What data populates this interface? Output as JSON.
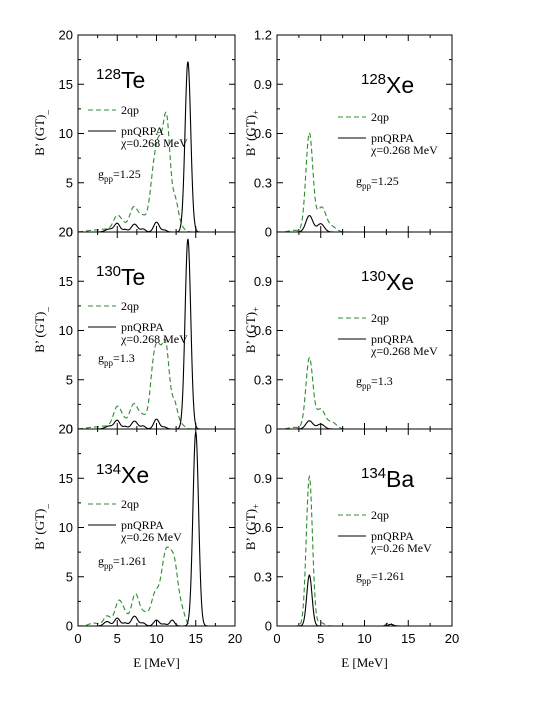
{
  "chart_data": [
    {
      "type": "line",
      "nucleus": {
        "mass": "128",
        "symbol": "Te"
      },
      "ylabel": {
        "main": "B’ (GT)",
        "sub": "_"
      },
      "xlim": [
        0,
        20
      ],
      "ylim": [
        0,
        20
      ],
      "yticks": [
        0,
        5,
        10,
        15,
        20
      ],
      "ytick_labels": [
        "0",
        "5",
        "10",
        "15",
        "20"
      ],
      "xticks": [
        0,
        5,
        10,
        15,
        20
      ],
      "xtick_labels": [],
      "legend": [
        {
          "label": "2qp",
          "label2": "",
          "style": "dashed",
          "color": "#2e8b2e"
        },
        {
          "label": "pnQRPA",
          "label2": "χ=0.268 MeV",
          "style": "solid",
          "color": "#000000"
        }
      ],
      "annotation": {
        "g": "g",
        "sub": "pp",
        "value": "=1.25"
      },
      "series": [
        {
          "color": "#2e8b2e",
          "dashed": true,
          "peaks": [
            [
              1.2,
              0.05,
              0.8
            ],
            [
              2.2,
              0.15,
              0.8
            ],
            [
              3.6,
              0.25,
              0.7
            ],
            [
              5.0,
              1.6,
              0.5
            ],
            [
              5.8,
              0.5,
              0.4
            ],
            [
              7.1,
              2.5,
              0.55
            ],
            [
              8.3,
              1.4,
              0.5
            ],
            [
              9.5,
              4.0,
              0.45
            ],
            [
              10.3,
              8.0,
              0.5
            ],
            [
              11.3,
              10.8,
              0.45
            ],
            [
              12.4,
              3.0,
              0.4
            ],
            [
              13.2,
              0.4,
              0.4
            ]
          ]
        },
        {
          "color": "#000000",
          "dashed": false,
          "peaks": [
            [
              4.0,
              0.3,
              0.5
            ],
            [
              5.0,
              0.85,
              0.35
            ],
            [
              6.0,
              0.25,
              0.3
            ],
            [
              7.2,
              0.8,
              0.4
            ],
            [
              8.3,
              0.3,
              0.3
            ],
            [
              10.0,
              1.0,
              0.35
            ],
            [
              11.0,
              0.2,
              0.3
            ],
            [
              14.0,
              17.3,
              0.36
            ]
          ]
        }
      ]
    },
    {
      "type": "line",
      "nucleus": {
        "mass": "128",
        "symbol": "Xe"
      },
      "ylabel": {
        "main": "B’ (GT)",
        "sub": "+"
      },
      "xlim": [
        0,
        20
      ],
      "ylim": [
        0,
        1.2
      ],
      "yticks": [
        0,
        0.3,
        0.6,
        0.9,
        1.2
      ],
      "ytick_labels": [
        "0",
        "0.3",
        "0.6",
        "0.9",
        "1.2"
      ],
      "xticks": [
        0,
        5,
        10,
        15,
        20
      ],
      "xtick_labels": [],
      "legend": [
        {
          "label": "2qp",
          "label2": "",
          "style": "dashed",
          "color": "#2e8b2e"
        },
        {
          "label": "pnQRPA",
          "label2": "χ=0.268 MeV",
          "style": "solid",
          "color": "#000000"
        }
      ],
      "annotation": {
        "g": "g",
        "sub": "pp",
        "value": "=1.25"
      },
      "series": [
        {
          "color": "#2e8b2e",
          "dashed": true,
          "peaks": [
            [
              2.0,
              0.01,
              0.6
            ],
            [
              3.7,
              0.6,
              0.4
            ],
            [
              5.1,
              0.15,
              0.5
            ],
            [
              6.3,
              0.03,
              0.5
            ]
          ]
        },
        {
          "color": "#000000",
          "dashed": false,
          "peaks": [
            [
              3.7,
              0.1,
              0.4
            ],
            [
              5.0,
              0.05,
              0.4
            ]
          ]
        }
      ]
    },
    {
      "type": "line",
      "nucleus": {
        "mass": "130",
        "symbol": "Te"
      },
      "ylabel": {
        "main": "B’ (GT)",
        "sub": "_"
      },
      "xlim": [
        0,
        20
      ],
      "ylim": [
        0,
        20
      ],
      "yticks": [
        0,
        5,
        10,
        15,
        20
      ],
      "ytick_labels": [
        "0",
        "5",
        "10",
        "15",
        "20"
      ],
      "xticks": [
        0,
        5,
        10,
        15,
        20
      ],
      "xtick_labels": [],
      "legend": [
        {
          "label": "2qp",
          "label2": "",
          "style": "dashed",
          "color": "#2e8b2e"
        },
        {
          "label": "pnQRPA",
          "label2": "χ=0.268 MeV",
          "style": "solid",
          "color": "#000000"
        }
      ],
      "annotation": {
        "g": "g",
        "sub": "pp",
        "value": "=1.3"
      },
      "series": [
        {
          "color": "#2e8b2e",
          "dashed": true,
          "peaks": [
            [
              1.2,
              0.05,
              0.8
            ],
            [
              2.2,
              0.15,
              0.8
            ],
            [
              3.6,
              0.25,
              0.7
            ],
            [
              5.0,
              2.2,
              0.5
            ],
            [
              5.8,
              0.6,
              0.4
            ],
            [
              7.1,
              2.5,
              0.55
            ],
            [
              8.3,
              1.2,
              0.5
            ],
            [
              9.6,
              5.5,
              0.45
            ],
            [
              10.3,
              6.0,
              0.45
            ],
            [
              11.2,
              8.0,
              0.45
            ],
            [
              12.3,
              2.5,
              0.4
            ],
            [
              13.2,
              0.4,
              0.4
            ]
          ]
        },
        {
          "color": "#000000",
          "dashed": false,
          "peaks": [
            [
              4.0,
              0.3,
              0.5
            ],
            [
              5.0,
              0.85,
              0.35
            ],
            [
              6.0,
              0.25,
              0.3
            ],
            [
              7.2,
              0.8,
              0.4
            ],
            [
              8.3,
              0.3,
              0.3
            ],
            [
              10.0,
              1.0,
              0.35
            ],
            [
              11.0,
              0.2,
              0.3
            ],
            [
              14.0,
              19.3,
              0.36
            ]
          ]
        }
      ]
    },
    {
      "type": "line",
      "nucleus": {
        "mass": "130",
        "symbol": "Xe"
      },
      "ylabel": {
        "main": "B’ (GT)",
        "sub": "+"
      },
      "xlim": [
        0,
        20
      ],
      "ylim": [
        0,
        1.2
      ],
      "yticks": [
        0,
        0.3,
        0.6,
        0.9,
        1.2
      ],
      "ytick_labels": [
        "0",
        "0.3",
        "0.6",
        "0.9",
        ""
      ],
      "xticks": [
        0,
        5,
        10,
        15,
        20
      ],
      "xtick_labels": [],
      "legend": [
        {
          "label": "2qp",
          "label2": "",
          "style": "dashed",
          "color": "#2e8b2e"
        },
        {
          "label": "pnQRPA",
          "label2": "χ=0.268 MeV",
          "style": "solid",
          "color": "#000000"
        }
      ],
      "annotation": {
        "g": "g",
        "sub": "pp",
        "value": "=1.3"
      },
      "series": [
        {
          "color": "#2e8b2e",
          "dashed": true,
          "peaks": [
            [
              2.0,
              0.01,
              0.6
            ],
            [
              3.7,
              0.43,
              0.4
            ],
            [
              5.0,
              0.12,
              0.5
            ],
            [
              6.3,
              0.04,
              0.5
            ]
          ]
        },
        {
          "color": "#000000",
          "dashed": false,
          "peaks": [
            [
              3.7,
              0.05,
              0.4
            ],
            [
              5.0,
              0.03,
              0.4
            ]
          ]
        }
      ]
    },
    {
      "type": "line",
      "nucleus": {
        "mass": "134",
        "symbol": "Xe"
      },
      "ylabel": {
        "main": "B’ (GT)",
        "sub": "_"
      },
      "xlabel": "E [MeV]",
      "xlim": [
        0,
        20
      ],
      "ylim": [
        0,
        20
      ],
      "yticks": [
        0,
        5,
        10,
        15,
        20
      ],
      "ytick_labels": [
        "0",
        "5",
        "10",
        "15",
        "20"
      ],
      "xticks": [
        0,
        5,
        10,
        15,
        20
      ],
      "xtick_labels": [
        "0",
        "5",
        "10",
        "15",
        "20"
      ],
      "legend": [
        {
          "label": "2qp",
          "label2": "",
          "style": "dashed",
          "color": "#2e8b2e"
        },
        {
          "label": "pnQRPA",
          "label2": "χ=0.26 MeV",
          "style": "solid",
          "color": "#000000"
        }
      ],
      "annotation": {
        "g": "g",
        "sub": "pp",
        "value": "=1.261"
      },
      "series": [
        {
          "color": "#2e8b2e",
          "dashed": true,
          "peaks": [
            [
              2.0,
              0.3,
              0.6
            ],
            [
              3.7,
              1.0,
              0.45
            ],
            [
              5.2,
              2.5,
              0.5
            ],
            [
              6.0,
              0.8,
              0.4
            ],
            [
              7.3,
              3.2,
              0.5
            ],
            [
              8.5,
              1.2,
              0.5
            ],
            [
              9.8,
              3.0,
              0.5
            ],
            [
              11.2,
              7.3,
              0.6
            ],
            [
              12.3,
              5.5,
              0.5
            ],
            [
              13.3,
              1.2,
              0.4
            ]
          ]
        },
        {
          "color": "#000000",
          "dashed": false,
          "peaks": [
            [
              3.7,
              0.45,
              0.4
            ],
            [
              5.0,
              0.8,
              0.35
            ],
            [
              6.0,
              0.3,
              0.3
            ],
            [
              7.2,
              1.0,
              0.4
            ],
            [
              8.3,
              0.3,
              0.3
            ],
            [
              10.0,
              0.6,
              0.35
            ],
            [
              11.0,
              0.2,
              0.3
            ],
            [
              12.0,
              0.6,
              0.3
            ],
            [
              15.0,
              19.7,
              0.36
            ]
          ]
        }
      ]
    },
    {
      "type": "line",
      "nucleus": {
        "mass": "134",
        "symbol": "Ba"
      },
      "ylabel": {
        "main": "B’ (GT)",
        "sub": "+"
      },
      "xlabel": "E [MeV]",
      "xlim": [
        0,
        20
      ],
      "ylim": [
        0,
        1.2
      ],
      "yticks": [
        0,
        0.3,
        0.6,
        0.9,
        1.2
      ],
      "ytick_labels": [
        "0",
        "0.3",
        "0.6",
        "0.9",
        ""
      ],
      "xticks": [
        0,
        5,
        10,
        15,
        20
      ],
      "xtick_labels": [
        "0",
        "5",
        "10",
        "15",
        "20"
      ],
      "legend": [
        {
          "label": "2qp",
          "label2": "",
          "style": "dashed",
          "color": "#2e8b2e"
        },
        {
          "label": "pnQRPA",
          "label2": "χ=0.26 MeV",
          "style": "solid",
          "color": "#000000"
        }
      ],
      "annotation": {
        "g": "g",
        "sub": "pp",
        "value": "=1.261"
      },
      "series": [
        {
          "color": "#2e8b2e",
          "dashed": true,
          "peaks": [
            [
              3.7,
              0.91,
              0.35
            ],
            [
              5.0,
              0.02,
              0.4
            ],
            [
              12.8,
              0.02,
              0.3
            ]
          ]
        },
        {
          "color": "#000000",
          "dashed": false,
          "peaks": [
            [
              3.7,
              0.31,
              0.3
            ],
            [
              13.0,
              0.01,
              0.3
            ]
          ]
        }
      ]
    }
  ]
}
